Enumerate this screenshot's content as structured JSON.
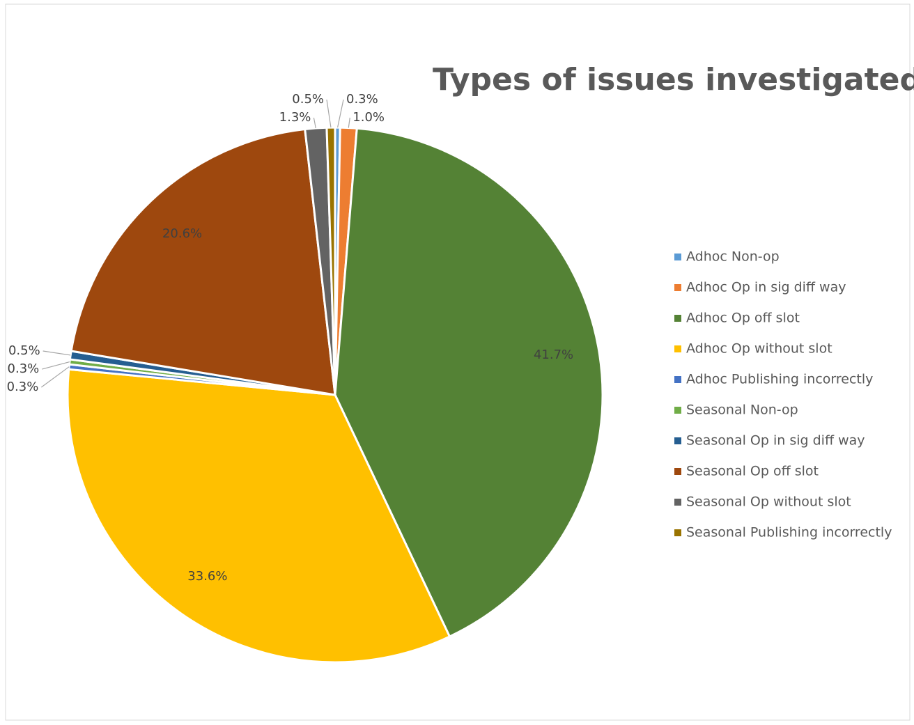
{
  "chart_data": {
    "type": "pie",
    "title": "Types of issues investigated",
    "categories": [
      "Adhoc Non-op",
      "Adhoc Op in sig diff way",
      "Adhoc Op off slot",
      "Adhoc Op without slot",
      "Adhoc Publishing incorrectly",
      "Seasonal Non-op",
      "Seasonal Op in sig diff way",
      "Seasonal Op off slot",
      "Seasonal Op without slot",
      "Seasonal Publishing incorrectly"
    ],
    "values": [
      0.3,
      1.0,
      41.7,
      33.6,
      0.3,
      0.3,
      0.5,
      20.6,
      1.3,
      0.5
    ],
    "value_labels": [
      "0.3%",
      "1.0%",
      "41.7%",
      "33.6%",
      "0.3%",
      "0.3%",
      "0.5%",
      "20.6%",
      "1.3%",
      "0.5%"
    ],
    "colors": [
      "#5b9bd5",
      "#ed7d31",
      "#548235",
      "#ffc000",
      "#4472c4",
      "#70ad47",
      "#255e91",
      "#9e480e",
      "#636363",
      "#997300"
    ],
    "legend": "right"
  }
}
